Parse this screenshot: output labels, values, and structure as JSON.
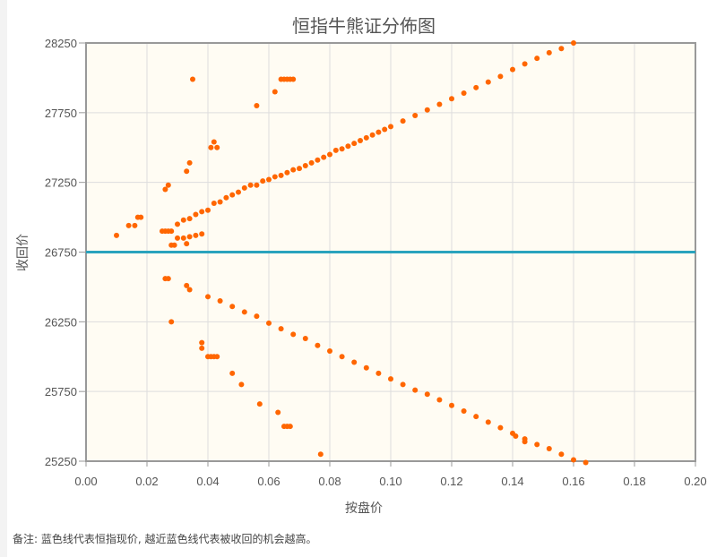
{
  "chart_data": {
    "type": "scatter",
    "title": "恒指牛熊证分佈图",
    "xlabel": "按盘价",
    "ylabel": "收回价",
    "xlim": [
      0,
      0.2
    ],
    "ylim": [
      25250,
      28250
    ],
    "xticks": [
      "0.00",
      "0.02",
      "0.04",
      "0.06",
      "0.08",
      "0.10",
      "0.12",
      "0.14",
      "0.16",
      "0.18",
      "0.20"
    ],
    "yticks": [
      "25250",
      "25750",
      "26250",
      "26750",
      "27250",
      "27750",
      "28250"
    ],
    "grid": true,
    "reference_line": {
      "y": 26750,
      "color": "#2aa3bd"
    },
    "point_color": "#ff6600",
    "plot_background": "#fffcf3",
    "points": [
      [
        0.01,
        26870
      ],
      [
        0.014,
        26940
      ],
      [
        0.016,
        26940
      ],
      [
        0.017,
        27000
      ],
      [
        0.018,
        27000
      ],
      [
        0.026,
        27200
      ],
      [
        0.027,
        27230
      ],
      [
        0.025,
        26900
      ],
      [
        0.026,
        26900
      ],
      [
        0.027,
        26900
      ],
      [
        0.028,
        26900
      ],
      [
        0.033,
        27330
      ],
      [
        0.034,
        27390
      ],
      [
        0.035,
        27990
      ],
      [
        0.041,
        27500
      ],
      [
        0.042,
        27540
      ],
      [
        0.043,
        27500
      ],
      [
        0.056,
        27800
      ],
      [
        0.062,
        27900
      ],
      [
        0.064,
        27990
      ],
      [
        0.065,
        27990
      ],
      [
        0.066,
        27990
      ],
      [
        0.067,
        27990
      ],
      [
        0.068,
        27990
      ],
      [
        0.028,
        26800
      ],
      [
        0.029,
        26800
      ],
      [
        0.03,
        26850
      ],
      [
        0.032,
        26850
      ],
      [
        0.033,
        26810
      ],
      [
        0.034,
        26860
      ],
      [
        0.036,
        26870
      ],
      [
        0.038,
        26880
      ],
      [
        0.03,
        26950
      ],
      [
        0.032,
        26980
      ],
      [
        0.034,
        26990
      ],
      [
        0.036,
        27020
      ],
      [
        0.038,
        27040
      ],
      [
        0.04,
        27050
      ],
      [
        0.042,
        27100
      ],
      [
        0.044,
        27110
      ],
      [
        0.046,
        27140
      ],
      [
        0.048,
        27160
      ],
      [
        0.05,
        27180
      ],
      [
        0.052,
        27210
      ],
      [
        0.054,
        27230
      ],
      [
        0.056,
        27230
      ],
      [
        0.058,
        27260
      ],
      [
        0.06,
        27270
      ],
      [
        0.062,
        27290
      ],
      [
        0.064,
        27300
      ],
      [
        0.066,
        27320
      ],
      [
        0.068,
        27340
      ],
      [
        0.07,
        27350
      ],
      [
        0.072,
        27370
      ],
      [
        0.074,
        27390
      ],
      [
        0.076,
        27410
      ],
      [
        0.078,
        27430
      ],
      [
        0.08,
        27450
      ],
      [
        0.082,
        27480
      ],
      [
        0.084,
        27490
      ],
      [
        0.086,
        27510
      ],
      [
        0.088,
        27530
      ],
      [
        0.09,
        27550
      ],
      [
        0.092,
        27570
      ],
      [
        0.094,
        27590
      ],
      [
        0.096,
        27610
      ],
      [
        0.098,
        27630
      ],
      [
        0.1,
        27650
      ],
      [
        0.104,
        27690
      ],
      [
        0.108,
        27730
      ],
      [
        0.112,
        27770
      ],
      [
        0.116,
        27810
      ],
      [
        0.12,
        27850
      ],
      [
        0.124,
        27890
      ],
      [
        0.128,
        27930
      ],
      [
        0.132,
        27970
      ],
      [
        0.136,
        28010
      ],
      [
        0.14,
        28060
      ],
      [
        0.144,
        28100
      ],
      [
        0.148,
        28140
      ],
      [
        0.152,
        28180
      ],
      [
        0.156,
        28210
      ],
      [
        0.16,
        28250
      ],
      [
        0.026,
        26560
      ],
      [
        0.027,
        26560
      ],
      [
        0.028,
        26250
      ],
      [
        0.033,
        26510
      ],
      [
        0.034,
        26480
      ],
      [
        0.038,
        26100
      ],
      [
        0.038,
        26060
      ],
      [
        0.04,
        26000
      ],
      [
        0.041,
        26000
      ],
      [
        0.042,
        26000
      ],
      [
        0.043,
        26000
      ],
      [
        0.048,
        25880
      ],
      [
        0.051,
        25800
      ],
      [
        0.057,
        25660
      ],
      [
        0.063,
        25600
      ],
      [
        0.065,
        25500
      ],
      [
        0.066,
        25500
      ],
      [
        0.067,
        25500
      ],
      [
        0.077,
        25300
      ],
      [
        0.141,
        25430
      ],
      [
        0.144,
        25390
      ],
      [
        0.164,
        25240
      ],
      [
        0.04,
        26430
      ],
      [
        0.044,
        26400
      ],
      [
        0.048,
        26360
      ],
      [
        0.052,
        26320
      ],
      [
        0.056,
        26290
      ],
      [
        0.06,
        26240
      ],
      [
        0.064,
        26200
      ],
      [
        0.068,
        26160
      ],
      [
        0.072,
        26130
      ],
      [
        0.076,
        26080
      ],
      [
        0.08,
        26040
      ],
      [
        0.084,
        26000
      ],
      [
        0.088,
        25960
      ],
      [
        0.092,
        25920
      ],
      [
        0.096,
        25880
      ],
      [
        0.1,
        25840
      ],
      [
        0.104,
        25800
      ],
      [
        0.108,
        25760
      ],
      [
        0.112,
        25730
      ],
      [
        0.116,
        25690
      ],
      [
        0.12,
        25650
      ],
      [
        0.124,
        25610
      ],
      [
        0.128,
        25570
      ],
      [
        0.132,
        25530
      ],
      [
        0.136,
        25490
      ],
      [
        0.14,
        25450
      ],
      [
        0.144,
        25410
      ],
      [
        0.148,
        25370
      ],
      [
        0.152,
        25340
      ],
      [
        0.156,
        25300
      ],
      [
        0.16,
        25260
      ]
    ]
  },
  "note": "备注:  蓝色线代表恒指现价, 越近蓝色线代表被收回的机会越高。"
}
